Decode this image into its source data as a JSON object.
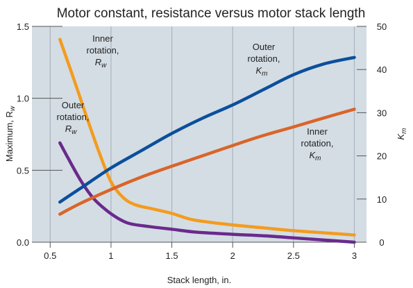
{
  "chart_data": {
    "type": "line",
    "title": "Motor constant, resistance versus motor stack length",
    "xlabel": "Stack length, in.",
    "ylabel_left": "Maximum, R",
    "ylabel_left_sub": "w",
    "ylabel_right": "K",
    "ylabel_right_sub": "m",
    "xlim": [
      0.35,
      3.1
    ],
    "ylim_left": [
      0,
      1.5
    ],
    "ylim_right": [
      0,
      50
    ],
    "x_ticks": [
      0.5,
      1,
      1.5,
      2,
      2.5,
      3
    ],
    "x_tick_labels": [
      "0.5",
      "1",
      "1.5",
      "2",
      "2.5",
      "3"
    ],
    "y_left_ticks": [
      0,
      0.5,
      1.0,
      1.5
    ],
    "y_left_tick_labels": [
      "0.0",
      "0.5",
      "1.0",
      "1.5"
    ],
    "y_right_ticks": [
      0,
      10,
      20,
      30,
      40,
      50
    ],
    "y_right_tick_labels": [
      "0",
      "10",
      "20",
      "30",
      "40",
      "50"
    ],
    "grid": "vertical",
    "series": [
      {
        "id": "inner-rw",
        "axis": "left",
        "color": "#f39c1f",
        "x": [
          0.58,
          0.7,
          0.8,
          0.9,
          1.0,
          1.1,
          1.2,
          1.35,
          1.5,
          1.65,
          1.8,
          2.0,
          2.25,
          2.5,
          2.75,
          3.0
        ],
        "y": [
          1.41,
          1.12,
          0.87,
          0.63,
          0.42,
          0.31,
          0.26,
          0.23,
          0.2,
          0.16,
          0.14,
          0.12,
          0.1,
          0.08,
          0.065,
          0.05
        ]
      },
      {
        "id": "outer-rw",
        "axis": "left",
        "color": "#6a2a8c",
        "x": [
          0.58,
          0.65,
          0.75,
          0.85,
          0.95,
          1.05,
          1.15,
          1.3,
          1.5,
          1.7,
          2.0,
          2.25,
          2.5,
          2.75,
          3.0
        ],
        "y": [
          0.69,
          0.58,
          0.43,
          0.31,
          0.23,
          0.17,
          0.13,
          0.11,
          0.09,
          0.07,
          0.055,
          0.045,
          0.03,
          0.015,
          0.0
        ]
      },
      {
        "id": "outer-km",
        "axis": "right",
        "color": "#0b4f9c",
        "x": [
          0.58,
          0.75,
          1.0,
          1.25,
          1.5,
          1.75,
          2.0,
          2.25,
          2.5,
          2.75,
          3.0
        ],
        "y": [
          9.3,
          12.5,
          17.2,
          21.2,
          25.2,
          28.7,
          31.8,
          35.3,
          38.8,
          41.3,
          42.8
        ]
      },
      {
        "id": "inner-km",
        "axis": "right",
        "color": "#d9652a",
        "x": [
          0.58,
          0.75,
          1.0,
          1.25,
          1.5,
          1.75,
          2.0,
          2.25,
          2.5,
          2.75,
          3.0
        ],
        "y": [
          6.5,
          9.0,
          12.2,
          15.1,
          17.6,
          20.0,
          22.4,
          24.7,
          26.7,
          28.8,
          30.8
        ]
      }
    ],
    "annotations": [
      {
        "id": "inner-rw",
        "lines": [
          "Inner",
          "rotation,"
        ],
        "symbol": "R",
        "sub": "w"
      },
      {
        "id": "outer-rw",
        "lines": [
          "Outer",
          "rotation,"
        ],
        "symbol": "R",
        "sub": "w"
      },
      {
        "id": "outer-km",
        "lines": [
          "Outer",
          "rotation,"
        ],
        "symbol": "K",
        "sub": "m"
      },
      {
        "id": "inner-km",
        "lines": [
          "Inner",
          "rotation,"
        ],
        "symbol": "K",
        "sub": "m"
      }
    ]
  },
  "colors": {
    "plot_background": "#d4dde4",
    "grid": "#a9b4bd",
    "axis": "#555555"
  }
}
